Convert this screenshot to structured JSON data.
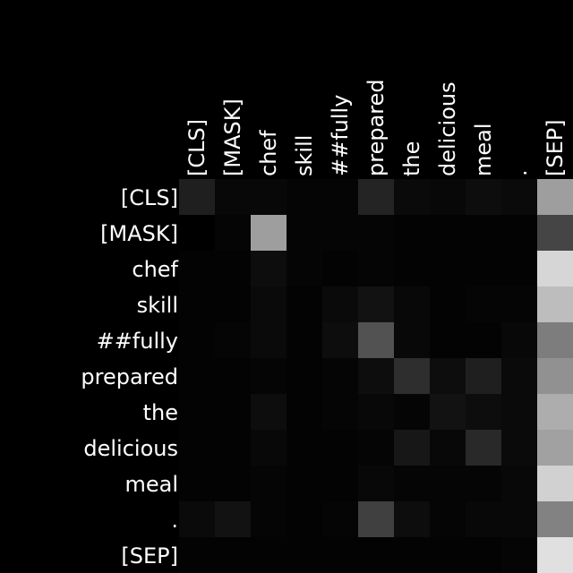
{
  "chart_data": {
    "type": "heatmap",
    "x_tokens": [
      "[CLS]",
      "[MASK]",
      "chef",
      "skill",
      "##fully",
      "prepared",
      "the",
      "delicious",
      "meal",
      ".",
      "[SEP]"
    ],
    "y_tokens": [
      "[CLS]",
      "[MASK]",
      "chef",
      "skill",
      "##fully",
      "prepared",
      "the",
      "delicious",
      "meal",
      ".",
      "[SEP]"
    ],
    "values": [
      [
        0.12,
        0.03,
        0.03,
        0.02,
        0.02,
        0.14,
        0.04,
        0.03,
        0.05,
        0.04,
        0.62
      ],
      [
        0.0,
        0.02,
        0.62,
        0.02,
        0.02,
        0.02,
        0.01,
        0.01,
        0.01,
        0.01,
        0.27
      ],
      [
        0.01,
        0.01,
        0.05,
        0.02,
        0.01,
        0.02,
        0.01,
        0.01,
        0.01,
        0.01,
        0.84
      ],
      [
        0.01,
        0.01,
        0.04,
        0.01,
        0.04,
        0.07,
        0.03,
        0.01,
        0.02,
        0.02,
        0.74
      ],
      [
        0.01,
        0.02,
        0.04,
        0.01,
        0.05,
        0.32,
        0.03,
        0.01,
        0.01,
        0.03,
        0.49
      ],
      [
        0.01,
        0.01,
        0.02,
        0.01,
        0.02,
        0.05,
        0.18,
        0.05,
        0.12,
        0.04,
        0.57
      ],
      [
        0.01,
        0.01,
        0.05,
        0.01,
        0.02,
        0.03,
        0.02,
        0.07,
        0.05,
        0.04,
        0.68
      ],
      [
        0.01,
        0.01,
        0.03,
        0.01,
        0.01,
        0.02,
        0.09,
        0.03,
        0.16,
        0.04,
        0.63
      ],
      [
        0.01,
        0.01,
        0.02,
        0.01,
        0.01,
        0.03,
        0.02,
        0.02,
        0.02,
        0.03,
        0.82
      ],
      [
        0.04,
        0.07,
        0.02,
        0.01,
        0.02,
        0.25,
        0.05,
        0.02,
        0.03,
        0.03,
        0.51
      ],
      [
        0.01,
        0.01,
        0.01,
        0.01,
        0.01,
        0.01,
        0.01,
        0.01,
        0.01,
        0.02,
        0.88
      ]
    ],
    "color_scale": {
      "low": "#000000",
      "high": "#ffffff"
    },
    "vmin": 0,
    "vmax": 1,
    "legend": "none",
    "grid": false
  }
}
